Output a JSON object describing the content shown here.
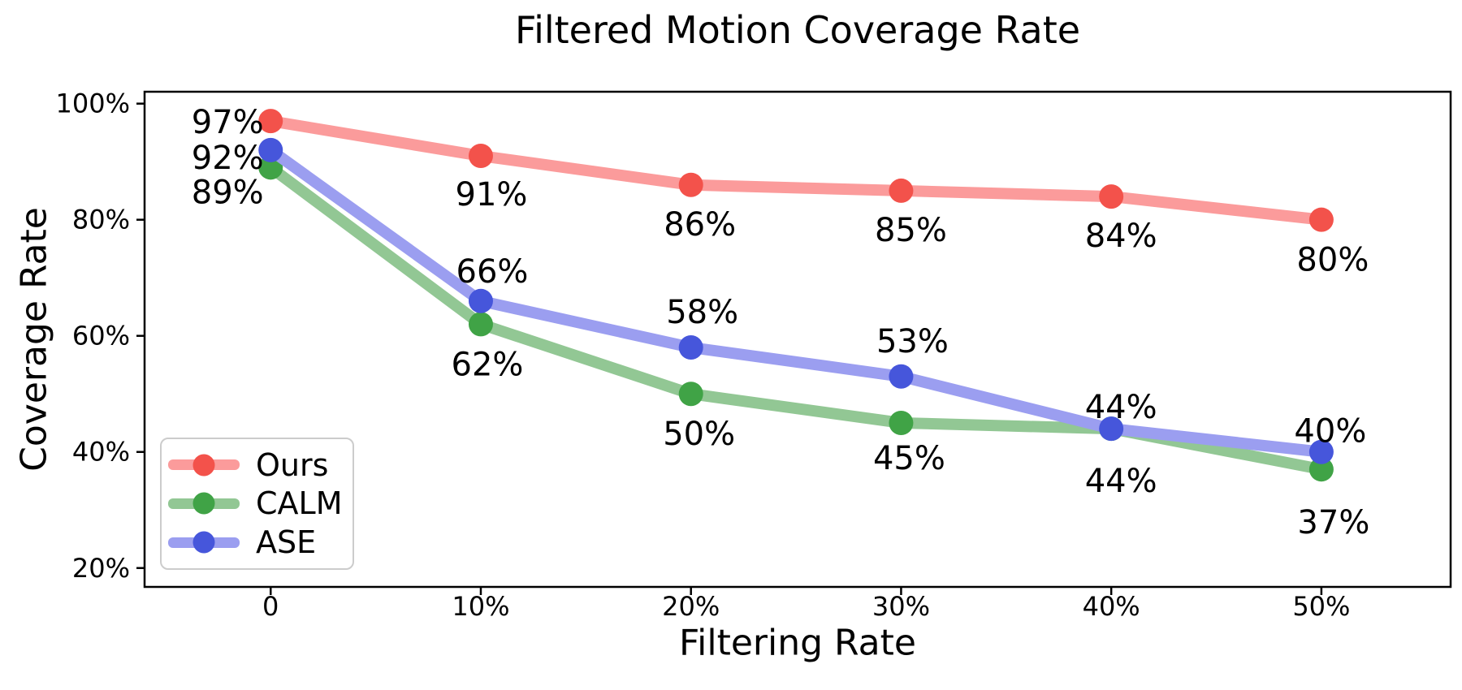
{
  "figure": {
    "background": "#ffffff",
    "axis_color": "#000000",
    "text_color": "#000000"
  },
  "chart_data": {
    "type": "line",
    "title": "Filtered Motion Coverage Rate",
    "xlabel": "Filtering Rate",
    "ylabel": "Coverage Rate",
    "x": [
      0,
      10,
      20,
      30,
      40,
      50
    ],
    "x_tick_labels": [
      "0",
      "10%",
      "20%",
      "30%",
      "40%",
      "50%"
    ],
    "y_ticks": [
      20,
      40,
      60,
      80,
      100
    ],
    "y_tick_labels": [
      "20%",
      "40%",
      "60%",
      "80%",
      "100%"
    ],
    "xlim": [
      -6.0,
      56.15
    ],
    "ylim": [
      16.75,
      102.05
    ],
    "grid": false,
    "legend_position": "lower-left",
    "series": [
      {
        "name": "Ours",
        "values": [
          97,
          91,
          86,
          85,
          84,
          80
        ],
        "point_labels": [
          "97%",
          "91%",
          "86%",
          "85%",
          "84%",
          "80%"
        ],
        "label_offsets": [
          [
            -53,
            2
          ],
          [
            13,
            48
          ],
          [
            11,
            49
          ],
          [
            12,
            49
          ],
          [
            12,
            49
          ],
          [
            14,
            50
          ]
        ],
        "line_color": "#fb9b9b",
        "marker_color": "#f3524b"
      },
      {
        "name": "CALM",
        "values": [
          89,
          62,
          50,
          45,
          44,
          37
        ],
        "point_labels": [
          "89%",
          "62%",
          "50%",
          "45%",
          "44%",
          "37%"
        ],
        "label_offsets": [
          [
            -53,
            31
          ],
          [
            8,
            50
          ],
          [
            10,
            50
          ],
          [
            10,
            44
          ],
          [
            12,
            65
          ],
          [
            15,
            66
          ]
        ],
        "line_color": "#92c794",
        "marker_color": "#40a346"
      },
      {
        "name": "ASE",
        "values": [
          92,
          66,
          58,
          53,
          44,
          40
        ],
        "point_labels": [
          "92%",
          "66%",
          "58%",
          "53%",
          "44%",
          "40%"
        ],
        "label_offsets": [
          [
            -53,
            10
          ],
          [
            14,
            -36
          ],
          [
            14,
            -43
          ],
          [
            14,
            -43
          ],
          [
            12,
            -26
          ],
          [
            11,
            -25
          ]
        ],
        "line_color": "#9b9ef0",
        "marker_color": "#4656db"
      }
    ]
  }
}
